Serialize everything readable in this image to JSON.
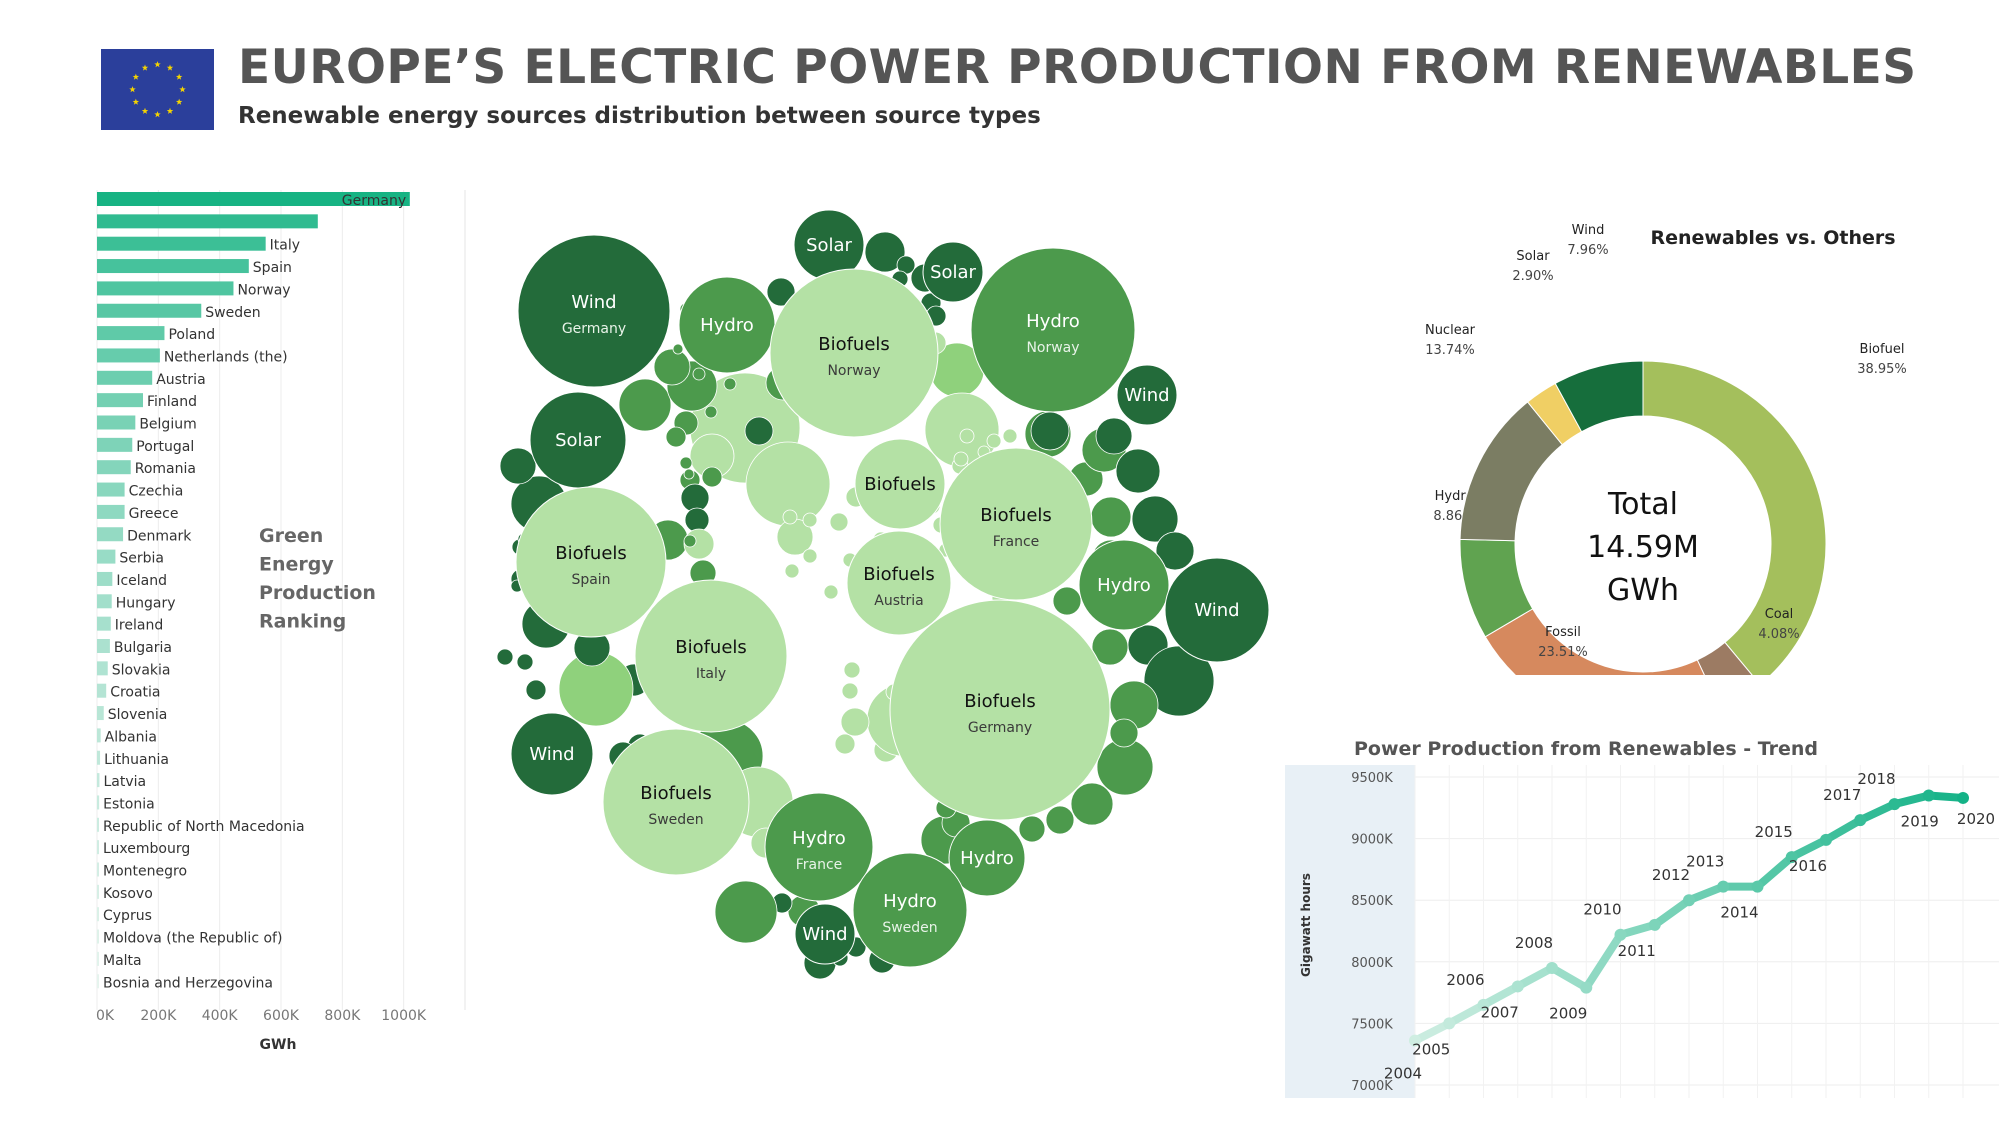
{
  "header": {
    "title": "EUROPE’S ELECTRIC POWER PRODUCTION FROM RENEWABLES",
    "subtitle": "Renewable energy sources distribution between source types",
    "flag_icon": "eu-flag-icon"
  },
  "colors": {
    "bar_dark": "#17b383",
    "bar_light": "#e6f4ee",
    "bubble_dark": "#236b3a",
    "bubble_mid": "#4c9a4c",
    "bubble_light": "#b4e1a5",
    "bubble_pale": "#8fd17c",
    "trend_start": "#cfeee2",
    "trend_end": "#14b287"
  },
  "ranking": {
    "side_label_lines": [
      "Green",
      "Energy",
      "Production",
      "Ranking"
    ],
    "xlabel": "GWh",
    "ticks": [
      "0K",
      "200K",
      "400K",
      "600K",
      "800K",
      "1000K"
    ]
  },
  "bubble_labels": [
    {
      "name": "Wind",
      "sub": "Germany"
    },
    {
      "name": "Hydro",
      "sub": ""
    },
    {
      "name": "Solar",
      "sub": ""
    },
    {
      "name": "Solar",
      "sub": ""
    },
    {
      "name": "Hydro",
      "sub": "Norway"
    },
    {
      "name": "Biofuels",
      "sub": "Norway"
    },
    {
      "name": "Wind",
      "sub": ""
    },
    {
      "name": "Solar",
      "sub": ""
    },
    {
      "name": "Biofuels",
      "sub": ""
    },
    {
      "name": "Biofuels",
      "sub": "France"
    },
    {
      "name": "Biofuels",
      "sub": "Spain"
    },
    {
      "name": "Biofuels",
      "sub": "Austria"
    },
    {
      "name": "Hydro",
      "sub": ""
    },
    {
      "name": "Wind",
      "sub": ""
    },
    {
      "name": "Biofuels",
      "sub": "Italy"
    },
    {
      "name": "Biofuels",
      "sub": "Germany"
    },
    {
      "name": "Wind",
      "sub": ""
    },
    {
      "name": "Biofuels",
      "sub": "Sweden"
    },
    {
      "name": "Hydro",
      "sub": "France"
    },
    {
      "name": "Hydro",
      "sub": ""
    },
    {
      "name": "Hydro",
      "sub": "Sweden"
    },
    {
      "name": "Wind",
      "sub": ""
    }
  ],
  "donut": {
    "title": "Renewables vs. Others",
    "center_lines": [
      "Total",
      "14.59M",
      "GWh"
    ]
  },
  "trend": {
    "title": "Power Production from Renewables - Trend",
    "ylabel": "Gigawatt hours",
    "yticks": [
      "9500K",
      "9000K",
      "8500K",
      "8000K",
      "7500K",
      "7000K"
    ]
  },
  "chart_data": [
    {
      "type": "bar",
      "orientation": "horizontal",
      "categories": [
        "Germany",
        "",
        "Italy",
        "Spain",
        "Norway",
        "Sweden",
        "Poland",
        "Netherlands (the)",
        "Austria",
        "Finland",
        "Belgium",
        "Portugal",
        "Romania",
        "Czechia",
        "Greece",
        "Denmark",
        "Serbia",
        "Iceland",
        "Hungary",
        "Ireland",
        "Bulgaria",
        "Slovakia",
        "Croatia",
        "Slovenia",
        "Albania",
        "Lithuania",
        "Latvia",
        "Estonia",
        "Republic of North Macedonia",
        "Luxembourg",
        "Montenegro",
        "Kosovo",
        "Cyprus",
        "Moldova (the Republic of)",
        "Malta",
        "Bosnia and Herzegovina"
      ],
      "values": [
        1020000,
        720000,
        550000,
        495000,
        445000,
        340000,
        220000,
        205000,
        180000,
        150000,
        125000,
        115000,
        110000,
        90000,
        90000,
        85000,
        60000,
        50000,
        48000,
        45000,
        42000,
        35000,
        30000,
        22000,
        12000,
        10000,
        8000,
        7000,
        6000,
        3000,
        3000,
        2000,
        2000,
        1500,
        1000,
        800
      ],
      "xlabel": "GWh",
      "xlim": [
        0,
        1200000
      ],
      "grid": true
    },
    {
      "type": "bubble",
      "series": [
        {
          "name": "Wind",
          "color": "#236b3a"
        },
        {
          "name": "Hydro",
          "color": "#4c9a4c"
        },
        {
          "name": "Solar",
          "color": "#3b8b45"
        },
        {
          "name": "Biofuels",
          "color": "#b4e1a5"
        }
      ]
    },
    {
      "type": "pie",
      "style": "donut",
      "title": "Renewables vs. Others",
      "slices": [
        {
          "label": "Biofuel",
          "value": 38.95,
          "display": "38.95%",
          "color": "#a4bf5c"
        },
        {
          "label": "Coal",
          "value": 4.08,
          "display": "4.08%",
          "color": "#9c7b63"
        },
        {
          "label": "Fossil",
          "value": 23.51,
          "display": "23.51%",
          "color": "#d6895e"
        },
        {
          "label": "Hydro",
          "value": 8.86,
          "display": "8.86%",
          "color": "#60a350"
        },
        {
          "label": "Nuclear",
          "value": 13.74,
          "display": "13.74%",
          "color": "#7b7d63"
        },
        {
          "label": "Solar",
          "value": 2.9,
          "display": "2.90%",
          "color": "#f0cf64"
        },
        {
          "label": "Wind",
          "value": 7.96,
          "display": "7.96%",
          "color": "#166e3c"
        }
      ]
    },
    {
      "type": "line",
      "title": "Power Production from Renewables - Trend",
      "ylabel": "Gigawatt hours",
      "x": [
        "2004",
        "2005",
        "2006",
        "2007",
        "2008",
        "2009",
        "2010",
        "2011",
        "2012",
        "2013",
        "2014",
        "2015",
        "2016",
        "2017",
        "2018",
        "2019",
        "2020"
      ],
      "values": [
        7360,
        7500,
        7650,
        7800,
        7950,
        7790,
        8220,
        8300,
        8500,
        8610,
        8610,
        8850,
        8990,
        9150,
        9280,
        9350,
        9330
      ],
      "ylim": [
        7000,
        9600
      ],
      "grid": true
    }
  ]
}
